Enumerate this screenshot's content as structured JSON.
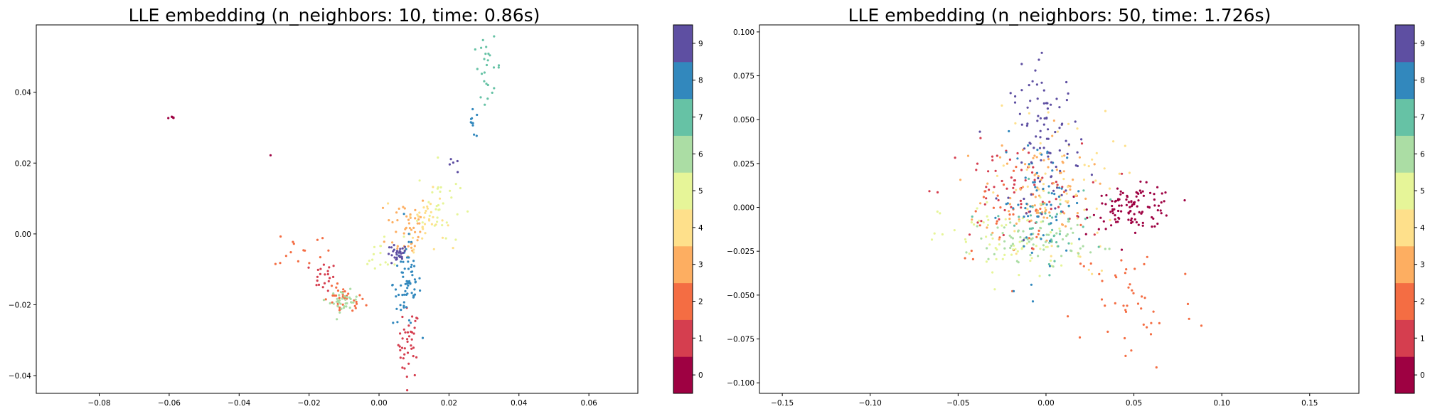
{
  "colorbar": {
    "ticks": [
      "0",
      "1",
      "2",
      "3",
      "4",
      "5",
      "6",
      "7",
      "8",
      "9"
    ],
    "colors": [
      "#9e0142",
      "#d53e4f",
      "#f46d43",
      "#fdae61",
      "#fee08b",
      "#e6f598",
      "#abdda4",
      "#66c2a5",
      "#3288bd",
      "#5e4fa2"
    ]
  },
  "chart_data": [
    {
      "type": "scatter",
      "title": "LLE embedding (n_neighbors: 10, time: 0.86s)",
      "xlim": [
        -0.098,
        0.074
      ],
      "ylim": [
        -0.045,
        0.059
      ],
      "xticks": [
        "−0.08",
        "−0.06",
        "−0.04",
        "−0.02",
        "0.00",
        "0.02",
        "0.04",
        "0.06"
      ],
      "xtick_values": [
        -0.08,
        -0.06,
        -0.04,
        -0.02,
        0.0,
        0.02,
        0.04,
        0.06
      ],
      "yticks": [
        "−0.04",
        "−0.02",
        "0.00",
        "0.02",
        "0.04"
      ],
      "ytick_values": [
        -0.04,
        -0.02,
        0.0,
        0.02,
        0.04
      ],
      "clusters": [
        {
          "label": "0",
          "n": 6,
          "cx": -0.059,
          "cy": 0.0328,
          "sx": 0.0006,
          "sy": 0.0002
        },
        {
          "label": "0",
          "n": 1,
          "cx": -0.031,
          "cy": 0.0222,
          "sx": 0.0,
          "sy": 0.0
        },
        {
          "label": "1",
          "n": 40,
          "cx": 0.0085,
          "cy": -0.031,
          "sx": 0.0015,
          "sy": 0.005
        },
        {
          "label": "1",
          "n": 20,
          "cx": -0.016,
          "cy": -0.012,
          "sx": 0.002,
          "sy": 0.002
        },
        {
          "label": "2",
          "n": 35,
          "cx": -0.01,
          "cy": -0.019,
          "sx": 0.003,
          "sy": 0.002
        },
        {
          "label": "2",
          "n": 15,
          "cx": -0.022,
          "cy": -0.004,
          "sx": 0.004,
          "sy": 0.003
        },
        {
          "label": "3",
          "n": 45,
          "cx": 0.008,
          "cy": 0.002,
          "sx": 0.003,
          "sy": 0.005
        },
        {
          "label": "4",
          "n": 35,
          "cx": 0.013,
          "cy": 0.004,
          "sx": 0.003,
          "sy": 0.004
        },
        {
          "label": "5",
          "n": 30,
          "cx": 0.017,
          "cy": 0.008,
          "sx": 0.003,
          "sy": 0.006
        },
        {
          "label": "5",
          "n": 15,
          "cx": 0.001,
          "cy": -0.006,
          "sx": 0.003,
          "sy": 0.003
        },
        {
          "label": "6",
          "n": 35,
          "cx": -0.01,
          "cy": -0.019,
          "sx": 0.002,
          "sy": 0.0015
        },
        {
          "label": "7",
          "n": 25,
          "cx": 0.031,
          "cy": 0.047,
          "sx": 0.002,
          "sy": 0.004
        },
        {
          "label": "8",
          "n": 70,
          "cx": 0.008,
          "cy": -0.014,
          "sx": 0.002,
          "sy": 0.006
        },
        {
          "label": "8",
          "n": 10,
          "cx": 0.027,
          "cy": 0.031,
          "sx": 0.001,
          "sy": 0.002
        },
        {
          "label": "9",
          "n": 30,
          "cx": 0.005,
          "cy": -0.006,
          "sx": 0.0015,
          "sy": 0.0015
        },
        {
          "label": "9",
          "n": 5,
          "cx": 0.021,
          "cy": 0.019,
          "sx": 0.001,
          "sy": 0.001
        }
      ]
    },
    {
      "type": "scatter",
      "title": "LLE embedding (n_neighbors: 50, time: 1.726s)",
      "xlim": [
        -0.163,
        0.178
      ],
      "ylim": [
        -0.106,
        0.104
      ],
      "xticks": [
        "−0.15",
        "−0.10",
        "−0.05",
        "0.00",
        "0.05",
        "0.10",
        "0.15"
      ],
      "xtick_values": [
        -0.15,
        -0.1,
        -0.05,
        0.0,
        0.05,
        0.1,
        0.15
      ],
      "yticks": [
        "−0.100",
        "−0.075",
        "−0.050",
        "−0.025",
        "0.000",
        "0.025",
        "0.050",
        "0.075",
        "0.100"
      ],
      "ytick_values": [
        -0.1,
        -0.075,
        -0.05,
        -0.025,
        0.0,
        0.025,
        0.05,
        0.075,
        0.1
      ],
      "clusters": [
        {
          "label": "0",
          "n": 110,
          "cx": 0.05,
          "cy": 0.0,
          "sx": 0.012,
          "sy": 0.006
        },
        {
          "label": "1",
          "n": 70,
          "cx": -0.02,
          "cy": 0.008,
          "sx": 0.02,
          "sy": 0.014
        },
        {
          "label": "2",
          "n": 45,
          "cx": 0.05,
          "cy": -0.055,
          "sx": 0.018,
          "sy": 0.02
        },
        {
          "label": "2",
          "n": 35,
          "cx": -0.015,
          "cy": -0.005,
          "sx": 0.022,
          "sy": 0.015
        },
        {
          "label": "3",
          "n": 80,
          "cx": -0.005,
          "cy": 0.012,
          "sx": 0.015,
          "sy": 0.016
        },
        {
          "label": "4",
          "n": 60,
          "cx": 0.005,
          "cy": 0.01,
          "sx": 0.018,
          "sy": 0.025
        },
        {
          "label": "5",
          "n": 70,
          "cx": -0.02,
          "cy": -0.02,
          "sx": 0.02,
          "sy": 0.012
        },
        {
          "label": "6",
          "n": 70,
          "cx": -0.005,
          "cy": -0.018,
          "sx": 0.018,
          "sy": 0.006
        },
        {
          "label": "7",
          "n": 40,
          "cx": 0.0,
          "cy": -0.01,
          "sx": 0.014,
          "sy": 0.012
        },
        {
          "label": "8",
          "n": 60,
          "cx": -0.002,
          "cy": 0.003,
          "sx": 0.012,
          "sy": 0.018
        },
        {
          "label": "9",
          "n": 90,
          "cx": 0.0,
          "cy": 0.04,
          "sx": 0.01,
          "sy": 0.02
        }
      ]
    }
  ]
}
